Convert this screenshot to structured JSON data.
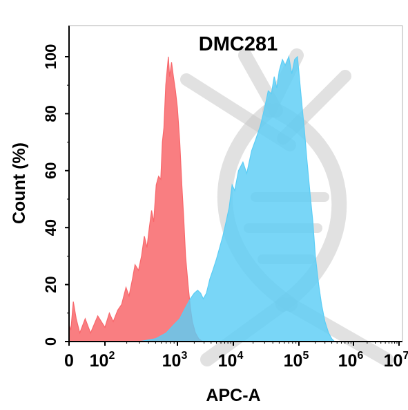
{
  "chart_data": {
    "type": "area",
    "title": "DMC281",
    "xlabel": "APC-A",
    "ylabel": "Count  (%)",
    "x_scale": "biexponential",
    "xlim": [
      0,
      10000000
    ],
    "ylim": [
      0,
      100
    ],
    "x_ticks": [
      {
        "value": 0,
        "base": "0",
        "exp": ""
      },
      {
        "value": 100,
        "base": "10",
        "exp": "2"
      },
      {
        "value": 1000,
        "base": "10",
        "exp": "3"
      },
      {
        "value": 10000,
        "base": "10",
        "exp": "4"
      },
      {
        "value": 100000,
        "base": "10",
        "exp": "5"
      },
      {
        "value": 1000000,
        "base": "10",
        "exp": "6"
      },
      {
        "value": 10000000,
        "base": "10",
        "exp": "7"
      }
    ],
    "y_ticks": [
      0,
      20,
      40,
      60,
      80,
      100
    ],
    "grid": false,
    "legend": "none",
    "watermark": "dna-logo",
    "series": [
      {
        "color": "#f8676b",
        "fill_opacity": 0.85,
        "points": [
          [
            0,
            6
          ],
          [
            5,
            4
          ],
          [
            12,
            14
          ],
          [
            20,
            8
          ],
          [
            30,
            3
          ],
          [
            45,
            8
          ],
          [
            60,
            3
          ],
          [
            80,
            9
          ],
          [
            100,
            5
          ],
          [
            115,
            10
          ],
          [
            130,
            7
          ],
          [
            150,
            11
          ],
          [
            170,
            13
          ],
          [
            195,
            19
          ],
          [
            215,
            16
          ],
          [
            240,
            22
          ],
          [
            260,
            27
          ],
          [
            290,
            25
          ],
          [
            320,
            30
          ],
          [
            350,
            37
          ],
          [
            380,
            33
          ],
          [
            410,
            40
          ],
          [
            440,
            46
          ],
          [
            470,
            42
          ],
          [
            510,
            55
          ],
          [
            550,
            58
          ],
          [
            590,
            57
          ],
          [
            620,
            70
          ],
          [
            650,
            75
          ],
          [
            690,
            90
          ],
          [
            720,
            95
          ],
          [
            750,
            100
          ],
          [
            780,
            93
          ],
          [
            830,
            98
          ],
          [
            880,
            93
          ],
          [
            940,
            88
          ],
          [
            1000,
            82
          ],
          [
            1100,
            70
          ],
          [
            1200,
            55
          ],
          [
            1300,
            43
          ],
          [
            1400,
            30
          ],
          [
            1550,
            20
          ],
          [
            1700,
            12
          ],
          [
            1850,
            7
          ],
          [
            2100,
            3
          ],
          [
            2400,
            1
          ],
          [
            2800,
            0
          ]
        ]
      },
      {
        "color": "#5bcdf5",
        "fill_opacity": 0.82,
        "points": [
          [
            0,
            0
          ],
          [
            100,
            0
          ],
          [
            300,
            0
          ],
          [
            500,
            1
          ],
          [
            700,
            3
          ],
          [
            900,
            6
          ],
          [
            1100,
            8
          ],
          [
            1400,
            12
          ],
          [
            1700,
            15
          ],
          [
            2000,
            17
          ],
          [
            2300,
            18
          ],
          [
            2600,
            17
          ],
          [
            2900,
            15
          ],
          [
            3300,
            17
          ],
          [
            3800,
            22
          ],
          [
            4300,
            25
          ],
          [
            5000,
            29
          ],
          [
            5700,
            33
          ],
          [
            6500,
            37
          ],
          [
            7400,
            42
          ],
          [
            8400,
            47
          ],
          [
            9500,
            55
          ],
          [
            10500,
            53
          ],
          [
            12000,
            60
          ],
          [
            14000,
            63
          ],
          [
            16000,
            59
          ],
          [
            19000,
            67
          ],
          [
            22000,
            71
          ],
          [
            26000,
            76
          ],
          [
            30000,
            82
          ],
          [
            34000,
            88
          ],
          [
            38000,
            87
          ],
          [
            42000,
            93
          ],
          [
            46000,
            89
          ],
          [
            50000,
            95
          ],
          [
            56000,
            99
          ],
          [
            62000,
            97
          ],
          [
            70000,
            100
          ],
          [
            78000,
            94
          ],
          [
            86000,
            99
          ],
          [
            95000,
            100
          ],
          [
            105000,
            90
          ],
          [
            115000,
            82
          ],
          [
            125000,
            75
          ],
          [
            140000,
            64
          ],
          [
            160000,
            52
          ],
          [
            180000,
            42
          ],
          [
            200000,
            30
          ],
          [
            230000,
            20
          ],
          [
            260000,
            13
          ],
          [
            300000,
            7
          ],
          [
            350000,
            3
          ],
          [
            400000,
            1
          ],
          [
            450000,
            0
          ]
        ]
      }
    ]
  }
}
